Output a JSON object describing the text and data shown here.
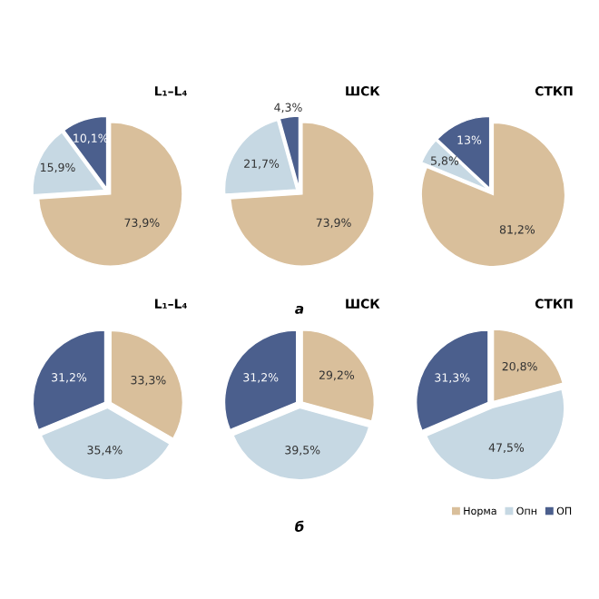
{
  "chart_data": [
    {
      "type": "pie",
      "title": "L₁–L₄",
      "categories": [
        null,
        null,
        null
      ],
      "values": [
        73.9,
        15.9,
        10.1
      ],
      "value_labels": [
        "73,9%",
        "15,9%",
        "10,1%"
      ],
      "colors": [
        "#d9bf9b",
        "#c6d8e3",
        "#4b5f8d"
      ]
    },
    {
      "type": "pie",
      "title": "ШСК",
      "categories": [
        null,
        null,
        null
      ],
      "values": [
        73.9,
        21.7,
        4.3
      ],
      "value_labels": [
        "73,9%",
        "21,7%",
        "4,3%"
      ],
      "colors": [
        "#d9bf9b",
        "#c6d8e3",
        "#4b5f8d"
      ],
      "annotations": [
        "а"
      ]
    },
    {
      "type": "pie",
      "title": "СТКП",
      "categories": [
        null,
        null,
        null
      ],
      "values": [
        81.2,
        5.8,
        13
      ],
      "value_labels": [
        "81,2%",
        "5,8%",
        "13%"
      ],
      "colors": [
        "#d9bf9b",
        "#c6d8e3",
        "#4b5f8d"
      ]
    },
    {
      "type": "pie",
      "title": "L₁–L₄",
      "categories": [
        null,
        null,
        null
      ],
      "values": [
        33.3,
        35.4,
        31.2
      ],
      "value_labels": [
        "33,3%",
        "35,4%",
        "31,2%"
      ],
      "colors": [
        "#d9bf9b",
        "#c6d8e3",
        "#4b5f8d"
      ]
    },
    {
      "type": "pie",
      "title": "ШСК",
      "categories": [
        null,
        null,
        null
      ],
      "values": [
        29.2,
        39.5,
        31.2
      ],
      "value_labels": [
        "29,2%",
        "39,5%",
        "31,2%"
      ],
      "colors": [
        "#d9bf9b",
        "#c6d8e3",
        "#4b5f8d"
      ],
      "annotations": [
        "б"
      ]
    },
    {
      "type": "pie",
      "title": "СТКП",
      "categories": [
        "Норма",
        "Опн",
        "ОП"
      ],
      "values": [
        20.8,
        47.5,
        31.3
      ],
      "value_labels": [
        "20,8%",
        "47,5%",
        "31,3%"
      ],
      "colors": [
        "#d9bf9b",
        "#c6d8e3",
        "#4b5f8d"
      ],
      "legend": "bottom right"
    }
  ]
}
